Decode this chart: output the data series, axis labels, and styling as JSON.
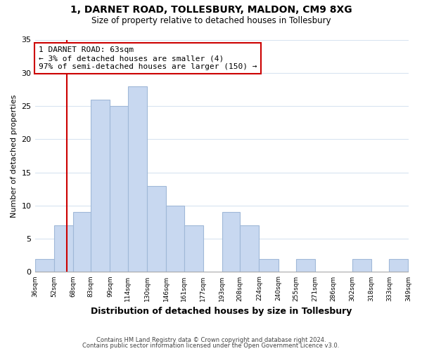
{
  "title": "1, DARNET ROAD, TOLLESBURY, MALDON, CM9 8XG",
  "subtitle": "Size of property relative to detached houses in Tollesbury",
  "xlabel": "Distribution of detached houses by size in Tollesbury",
  "ylabel": "Number of detached properties",
  "bar_color": "#c8d8f0",
  "bar_edge_color": "#a0b8d8",
  "property_line_color": "#cc0000",
  "property_line_x": 63,
  "annotation_line1": "1 DARNET ROAD: 63sqm",
  "annotation_line2": "← 3% of detached houses are smaller (4)",
  "annotation_line3": "97% of semi-detached houses are larger (150) →",
  "annotation_box_color": "#ffffff",
  "annotation_box_edge": "#cc0000",
  "bins": [
    36,
    52,
    68,
    83,
    99,
    114,
    130,
    146,
    161,
    177,
    193,
    208,
    224,
    240,
    255,
    271,
    286,
    302,
    318,
    333,
    349
  ],
  "counts": [
    2,
    7,
    9,
    26,
    25,
    28,
    13,
    10,
    7,
    0,
    9,
    7,
    2,
    0,
    2,
    0,
    0,
    2,
    0,
    2
  ],
  "ylim": [
    0,
    35
  ],
  "yticks": [
    0,
    5,
    10,
    15,
    20,
    25,
    30,
    35
  ],
  "tick_labels": [
    "36sqm",
    "52sqm",
    "68sqm",
    "83sqm",
    "99sqm",
    "114sqm",
    "130sqm",
    "146sqm",
    "161sqm",
    "177sqm",
    "193sqm",
    "208sqm",
    "224sqm",
    "240sqm",
    "255sqm",
    "271sqm",
    "286sqm",
    "302sqm",
    "318sqm",
    "333sqm",
    "349sqm"
  ],
  "footer_line1": "Contains HM Land Registry data © Crown copyright and database right 2024.",
  "footer_line2": "Contains public sector information licensed under the Open Government Licence v3.0.",
  "bg_color": "#ffffff",
  "grid_color": "#d8e4f0"
}
